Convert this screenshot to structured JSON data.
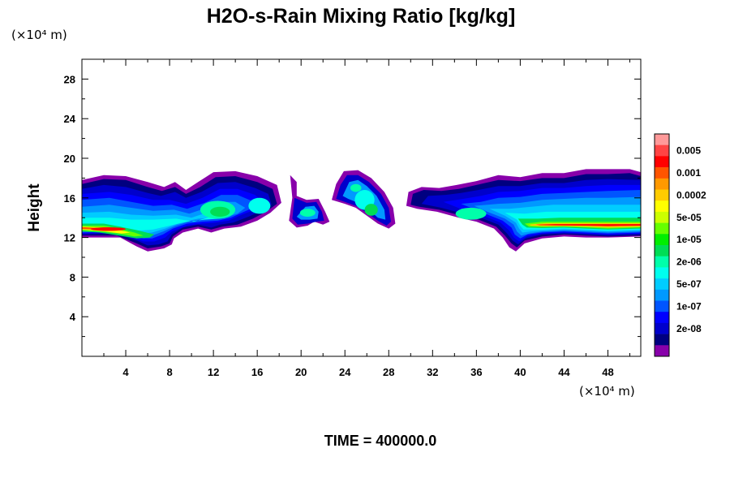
{
  "chart_data": {
    "type": "heatmap",
    "title": "H2O-s-Rain Mixing Ratio [kg/kg]",
    "ylabel": "Height",
    "x_unit": "(×10⁴ m)",
    "y_unit": "(×10⁴ m)",
    "xlim": [
      0,
      51
    ],
    "ylim": [
      0,
      30
    ],
    "x_ticks": [
      "4",
      "8",
      "12",
      "16",
      "20",
      "24",
      "28",
      "32",
      "36",
      "40",
      "44",
      "48"
    ],
    "y_ticks": [
      "4",
      "8",
      "12",
      "16",
      "20",
      "24",
      "28"
    ],
    "legend_labels": [
      "0.005",
      "0.001",
      "0.0002",
      "5e-05",
      "1e-05",
      "2e-06",
      "5e-07",
      "1e-07",
      "2e-08"
    ],
    "colorbar_colors": [
      "#ff9999",
      "#ff4444",
      "#ff0000",
      "#ff5500",
      "#ff9900",
      "#ffcc00",
      "#ffff00",
      "#ccff00",
      "#66ff00",
      "#00ee00",
      "#00dd55",
      "#00ffaa",
      "#00ffee",
      "#00ccff",
      "#0099ff",
      "#0055ff",
      "#0000ff",
      "#0000cc",
      "#000080",
      "#8800aa"
    ],
    "time_label": "TIME = 400000.0",
    "cloud_cores": [
      {
        "x": 2.5,
        "y": 12.6,
        "level": 17
      },
      {
        "x": 6.5,
        "y": 13.5,
        "level": 10
      },
      {
        "x": 12.5,
        "y": 14.5,
        "level": 9
      },
      {
        "x": 20.5,
        "y": 14.5,
        "level": 8
      },
      {
        "x": 25.0,
        "y": 15.0,
        "level": 9
      },
      {
        "x": 35.5,
        "y": 14.5,
        "level": 9
      },
      {
        "x": 44.0,
        "y": 13.2,
        "level": 17
      }
    ]
  }
}
